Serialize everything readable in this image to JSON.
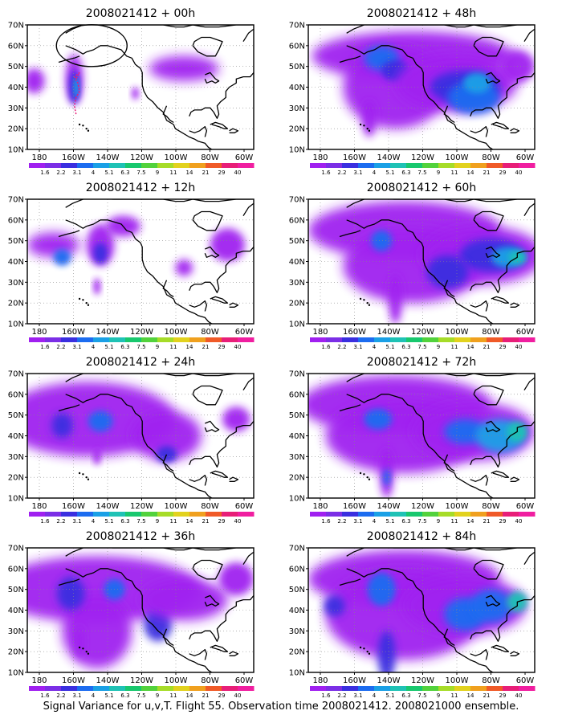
{
  "figure": {
    "caption": "Signal Variance for u,v,T. Flight 55. Observation time 2008021412. 2008021000 ensemble."
  },
  "map": {
    "lat_labels": [
      "70N",
      "60N",
      "50N",
      "40N",
      "30N",
      "20N",
      "10N"
    ],
    "lon_labels": [
      "180",
      "160W",
      "140W",
      "120W",
      "100W",
      "80W",
      "60W"
    ],
    "grid": "dotted",
    "land_fill": "white",
    "coastline_color": "#000000"
  },
  "colorbar": {
    "labels": [
      "1.6",
      "2.2",
      "3.1",
      "4",
      "5.1",
      "6.3",
      "7.5",
      "9",
      "11",
      "14",
      "21",
      "29",
      "40"
    ],
    "colors": [
      "#a020f0",
      "#7b2ee6",
      "#3a2fe0",
      "#1c6cf0",
      "#1aa0e6",
      "#1fc2b5",
      "#18c86e",
      "#52d23c",
      "#a6dc28",
      "#e2d21e",
      "#f0a01e",
      "#f05a28",
      "#e81e78",
      "#f01ea0"
    ]
  },
  "panels": [
    {
      "id": "p00",
      "title": "2008021412 + 00h"
    },
    {
      "id": "p48",
      "title": "2008021412 + 48h"
    },
    {
      "id": "p12",
      "title": "2008021412 + 12h"
    },
    {
      "id": "p60",
      "title": "2008021412 + 60h"
    },
    {
      "id": "p24",
      "title": "2008021412 + 24h"
    },
    {
      "id": "p72",
      "title": "2008021412 + 72h"
    },
    {
      "id": "p36",
      "title": "2008021412 + 36h"
    },
    {
      "id": "p84",
      "title": "2008021412 + 84h"
    }
  ],
  "annotations": {
    "ellipse_panel": "2008021412 + 00h",
    "flight_track_color": "#e81e78"
  }
}
